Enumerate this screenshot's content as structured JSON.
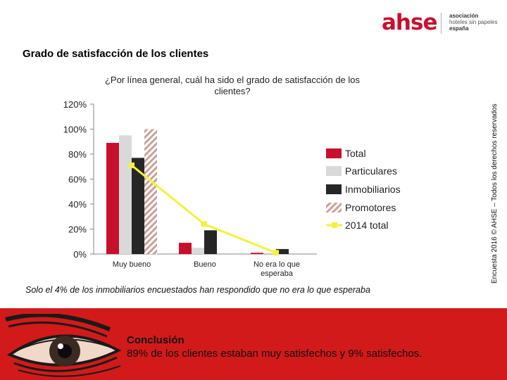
{
  "logo": {
    "text": "ahse",
    "sub_line1": "asociación",
    "sub_line2": "hoteles sin papeles",
    "sub_line3": "españa"
  },
  "page_title": "Grado de satisfacción de los clientes",
  "side_note": "Encuesta 2016 © AHSE – Todos los derechos reservados",
  "footnote": "Solo el 4% de los inmobiliarios encuestados han respondido que no era lo que esperaba",
  "conclusion": {
    "title": "Conclusión",
    "text": "89% de los clientes estaban muy satisfechos y 9% satisfechos."
  },
  "colors": {
    "banner": "#d21a1a",
    "total": "#c8102e",
    "particulares": "#d9d9d9",
    "inmobiliarios": "#262626",
    "promotores": "#c9a19a",
    "total_2014": "#f2f23a"
  },
  "chart_data": {
    "type": "bar",
    "title": "¿Por línea general, cuál ha sido el grado de satisfacción de los clientes?",
    "categories": [
      "Muy bueno",
      "Bueno",
      "No era lo que esperaba"
    ],
    "yticks": [
      "0%",
      "20%",
      "40%",
      "60%",
      "80%",
      "100%",
      "120%"
    ],
    "ylim": [
      0,
      120
    ],
    "series": [
      {
        "name": "Total",
        "style": "bar",
        "values": [
          89,
          9,
          1
        ]
      },
      {
        "name": "Particulares",
        "style": "bar",
        "values": [
          95,
          5,
          0
        ]
      },
      {
        "name": "Inmobiliarios",
        "style": "bar",
        "values": [
          77,
          19,
          4
        ]
      },
      {
        "name": "Promotores",
        "style": "hatched-bar",
        "values": [
          100,
          0,
          0
        ]
      },
      {
        "name": "2014 total",
        "style": "line",
        "values": [
          71,
          24,
          1
        ]
      }
    ],
    "legend_position": "right"
  }
}
